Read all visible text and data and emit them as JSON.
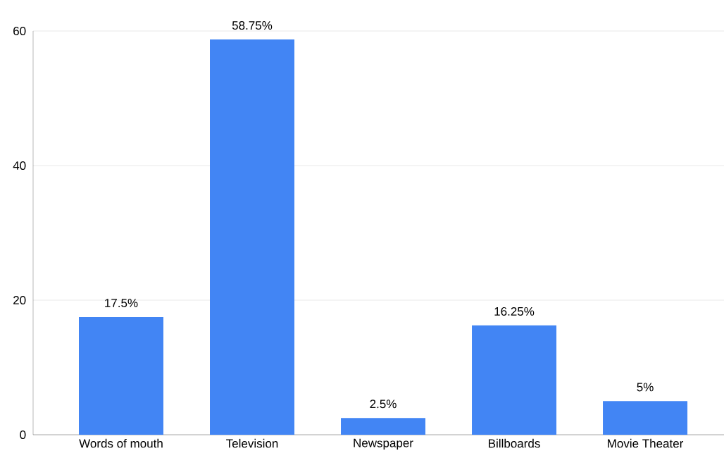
{
  "chart_data": {
    "type": "bar",
    "categories": [
      "Words of mouth",
      "Television",
      "Newspaper",
      "Billboards",
      "Movie Theater"
    ],
    "values": [
      17.5,
      58.75,
      2.5,
      16.25,
      5
    ],
    "value_labels": [
      "17.5%",
      "58.75%",
      "2.5%",
      "16.25%",
      "5%"
    ],
    "color": "#4285f4",
    "ylim": [
      0,
      60
    ],
    "yticks": [
      0,
      20,
      40,
      60
    ],
    "grid": "y"
  }
}
